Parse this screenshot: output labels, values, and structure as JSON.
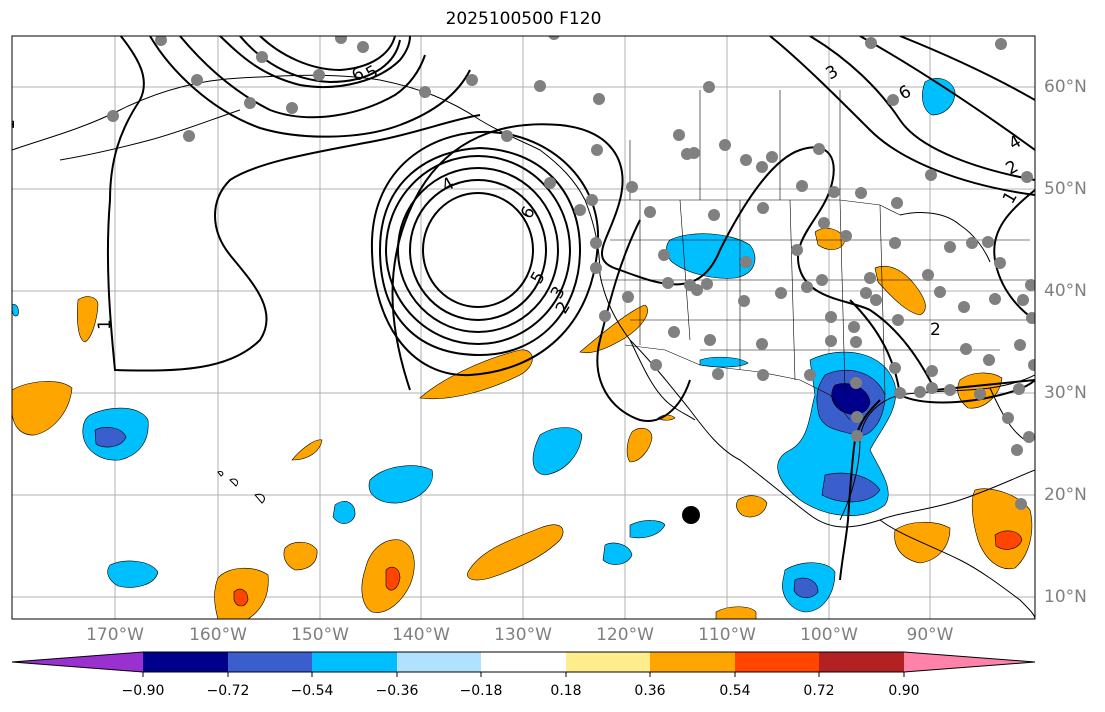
{
  "title": "2025100500 F120",
  "map": {
    "lon_labels": [
      "170°W",
      "160°W",
      "150°W",
      "140°W",
      "130°W",
      "120°W",
      "110°W",
      "100°W",
      "90°W"
    ],
    "lat_labels": [
      "60°N",
      "50°N",
      "40°N",
      "30°N",
      "20°N",
      "10°N"
    ],
    "contour_labels": [
      "1",
      "1",
      "1",
      "2",
      "2",
      "2",
      "3",
      "3",
      "4",
      "4",
      "5",
      "5",
      "6",
      "6",
      "6"
    ],
    "grid": true,
    "station_marker_color": "#808080",
    "storm_marker_color": "#000000"
  },
  "colorbar": {
    "tick_labels": [
      "−0.90",
      "−0.72",
      "−0.54",
      "−0.36",
      "−0.18",
      "0.18",
      "0.36",
      "0.54",
      "0.72",
      "0.90"
    ],
    "colors": [
      "#9b30d0",
      "#00008b",
      "#3a5fcd",
      "#00bfff",
      "#b0e2ff",
      "#ffffff",
      "#ffec8b",
      "#ffa500",
      "#ff4500",
      "#b22222",
      "#ff82ab"
    ]
  }
}
